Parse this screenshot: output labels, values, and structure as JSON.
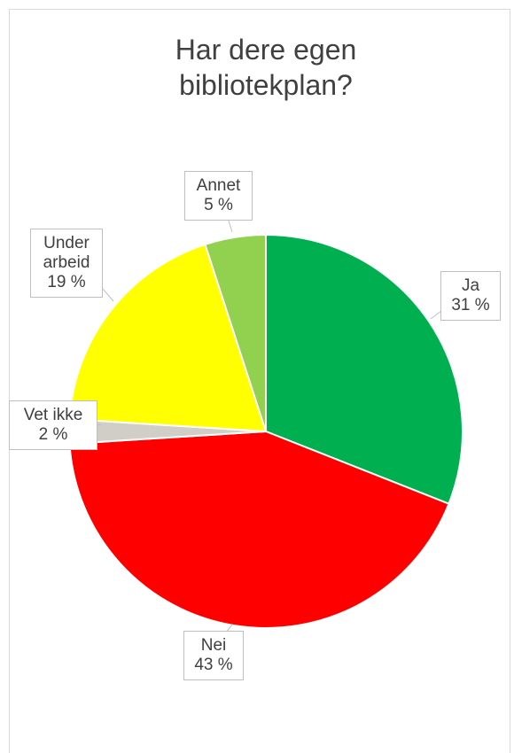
{
  "chart_data": {
    "type": "pie",
    "title": "Har dere egen bibliotekplan?",
    "categories": [
      "Ja",
      "Nei",
      "Vet ikke",
      "Under arbeid",
      "Annet"
    ],
    "values": [
      31,
      43,
      2,
      19,
      5
    ],
    "value_labels": [
      "31 %",
      "43 %",
      "2 %",
      "19 %",
      "5 %"
    ],
    "colors": [
      "#00b050",
      "#ff0000",
      "#d0cec6",
      "#ffff00",
      "#92d050"
    ]
  }
}
